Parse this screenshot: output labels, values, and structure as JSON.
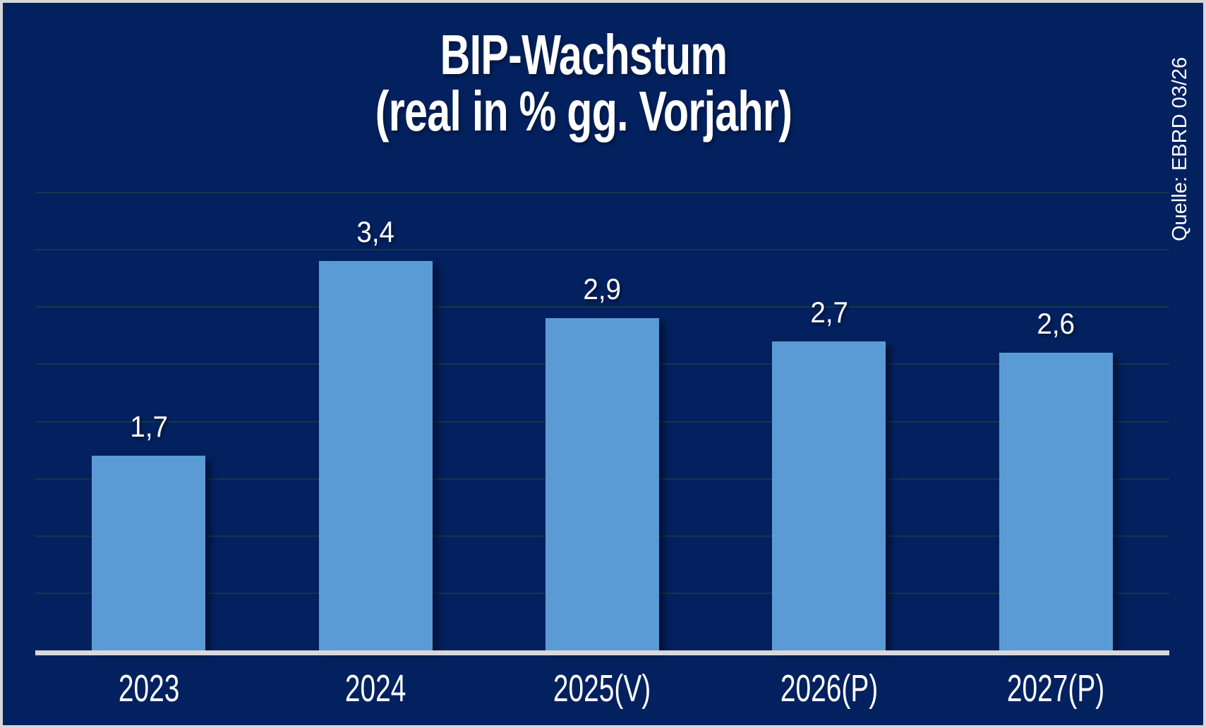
{
  "chart_data": {
    "type": "bar",
    "title_lines": [
      "BIP-Wachstum",
      "(real in % gg. Vorjahr)"
    ],
    "source": "Quelle: EBRD 03/26",
    "categories": [
      "2023",
      "2024",
      "2025(V)",
      "2026(P)",
      "2027(P)"
    ],
    "values": [
      1.7,
      3.4,
      2.9,
      2.7,
      2.6
    ],
    "value_labels": [
      "1,7",
      "3,4",
      "2,9",
      "2,7",
      "2,6"
    ],
    "xlabel": "",
    "ylabel": "",
    "ylim": [
      0,
      4.0
    ],
    "grid_step": 0.5,
    "grid_visible": true,
    "y_axis_tick_labels_visible": false,
    "legend_position": "none",
    "colors": {
      "background": "#03215F",
      "bar": "#5B9BD5",
      "baseline": "#D9D9D9",
      "gridline": "#15374A",
      "text": "#FFFFFF",
      "frame_border": "#D7D7DA"
    }
  }
}
